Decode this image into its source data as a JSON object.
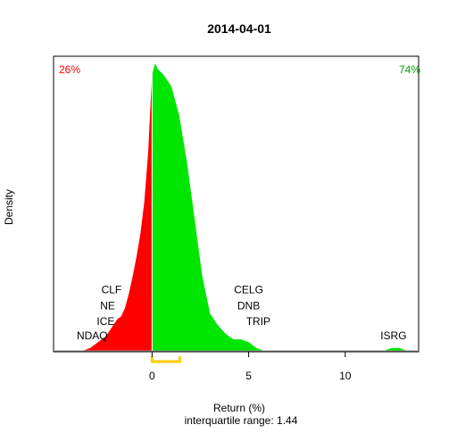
{
  "chart_data": {
    "type": "area",
    "title": "2014-04-01",
    "xlabel": "Return (%)",
    "subtitle": "interquartile range: 1.44",
    "ylabel": "Density",
    "xlim": [
      -5.1,
      13.8
    ],
    "ylim": [
      0,
      1.0
    ],
    "x_ticks": [
      0,
      10
    ],
    "x_tick_labels": [
      "0",
      "10"
    ],
    "x_ticks_minor": [
      5
    ],
    "x_tick_labels_minor": [
      "5"
    ],
    "neg_share_label": "26%",
    "pos_share_label": "74%",
    "neg_color": "#ff0000",
    "pos_color": "#00e600",
    "iqr_color": "#ffcc00",
    "iqr": [
      0.0,
      1.44
    ],
    "density": {
      "x": [
        -3.6,
        -3.2,
        -2.8,
        -2.4,
        -2.0,
        -1.8,
        -1.6,
        -1.4,
        -1.2,
        -1.0,
        -0.8,
        -0.6,
        -0.4,
        -0.2,
        -0.05,
        0.0,
        0.15,
        0.3,
        0.6,
        1.0,
        1.4,
        1.8,
        2.2,
        2.6,
        3.0,
        3.4,
        3.8,
        4.2,
        4.6,
        5.0,
        5.4,
        5.8,
        6.0,
        8.0,
        10.0,
        12.0,
        12.4,
        12.8,
        13.2
      ],
      "y": [
        0.0,
        0.01,
        0.03,
        0.05,
        0.09,
        0.11,
        0.12,
        0.15,
        0.2,
        0.26,
        0.33,
        0.41,
        0.52,
        0.69,
        0.9,
        0.96,
        1.0,
        0.98,
        0.96,
        0.92,
        0.82,
        0.66,
        0.46,
        0.26,
        0.13,
        0.09,
        0.06,
        0.04,
        0.04,
        0.03,
        0.01,
        0.0,
        0.0,
        0.0,
        0.0,
        0.0,
        0.01,
        0.01,
        0.0
      ]
    },
    "annotations": [
      {
        "label": "CLF",
        "x": -2.1,
        "y": 0.2
      },
      {
        "label": "NE",
        "x": -2.3,
        "y": 0.145
      },
      {
        "label": "ICE",
        "x": -2.4,
        "y": 0.09
      },
      {
        "label": "NDAQ",
        "x": -3.1,
        "y": 0.04
      },
      {
        "label": "CELG",
        "x": 5.0,
        "y": 0.2
      },
      {
        "label": "DNB",
        "x": 5.0,
        "y": 0.145
      },
      {
        "label": "TRIP",
        "x": 5.5,
        "y": 0.09
      },
      {
        "label": "ISRG",
        "x": 12.5,
        "y": 0.04
      }
    ]
  }
}
